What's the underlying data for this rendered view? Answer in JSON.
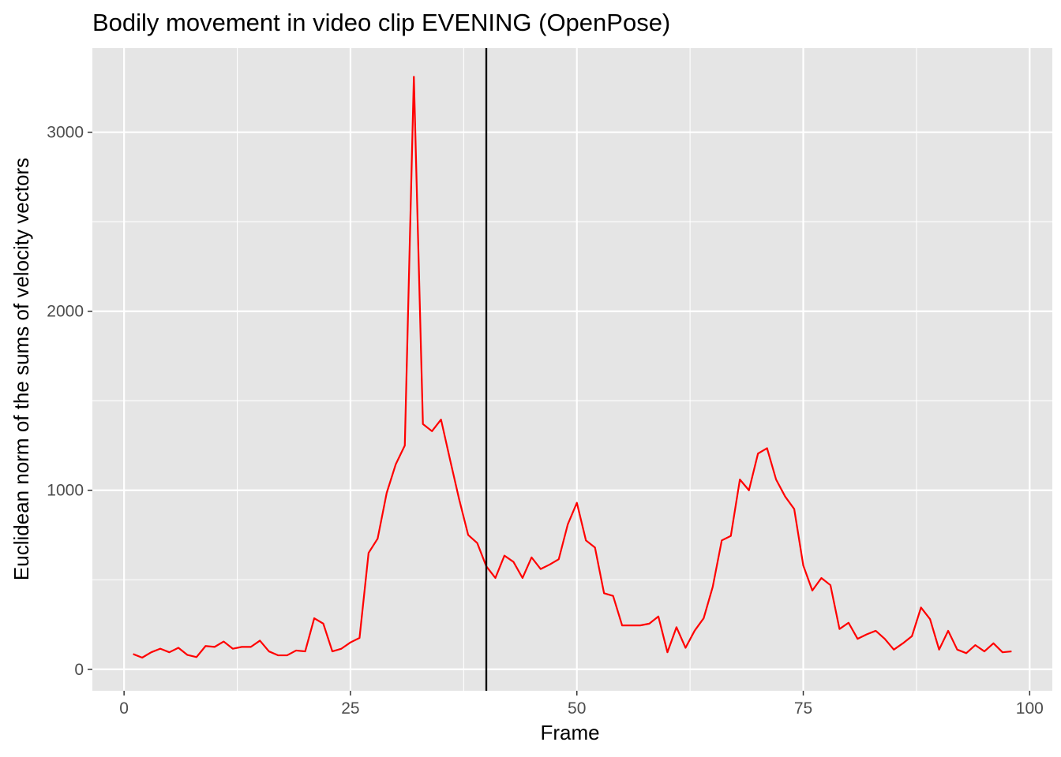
{
  "chart_data": {
    "type": "line",
    "title": "Bodily movement in video clip EVENING (OpenPose)",
    "xlabel": "Frame",
    "ylabel": "Euclidean norm of the sums of velocity vectors",
    "xlim": [
      -3.5,
      102.5
    ],
    "ylim": [
      -120,
      3470
    ],
    "x_ticks": [
      0,
      25,
      50,
      75,
      100
    ],
    "x_tick_labels": [
      "0",
      "25",
      "50",
      "75",
      "100"
    ],
    "y_ticks": [
      0,
      1000,
      2000,
      3000
    ],
    "y_tick_labels": [
      "0",
      "1000",
      "2000",
      "3000"
    ],
    "grid": true,
    "legend": "none",
    "vline": {
      "x": 40,
      "color": "#000000"
    },
    "colors": {
      "panel": "#e5e5e5",
      "grid": "#ffffff",
      "series": "#ff0000",
      "tick_text": "#4d4d4d",
      "tick_mark": "#333333"
    },
    "series": [
      {
        "x": [
          1,
          2,
          3,
          4,
          5,
          6,
          7,
          8,
          9,
          10,
          11,
          12,
          13,
          14,
          15,
          16,
          17,
          18,
          19,
          20,
          21,
          22,
          23,
          24,
          25,
          26,
          27,
          28,
          29,
          30,
          31,
          32,
          33,
          34,
          35,
          36,
          37,
          38,
          39,
          40,
          41,
          42,
          43,
          44,
          45,
          46,
          47,
          48,
          49,
          50,
          51,
          52,
          53,
          54,
          55,
          56,
          57,
          58,
          59,
          60,
          61,
          62,
          63,
          64,
          65,
          66,
          67,
          68,
          69,
          70,
          71,
          72,
          73,
          74,
          75,
          76,
          77,
          78,
          79,
          80,
          81,
          82,
          83,
          84,
          85,
          86,
          87,
          88,
          89,
          90,
          91,
          92,
          93,
          94,
          95,
          96,
          97,
          98
        ],
        "values": [
          85,
          65,
          95,
          115,
          95,
          120,
          80,
          68,
          130,
          125,
          155,
          115,
          125,
          125,
          160,
          100,
          78,
          78,
          105,
          100,
          285,
          255,
          100,
          115,
          150,
          175,
          650,
          730,
          985,
          1145,
          1250,
          3310,
          1370,
          1330,
          1395,
          1170,
          950,
          750,
          705,
          575,
          510,
          635,
          600,
          510,
          625,
          560,
          585,
          615,
          810,
          930,
          720,
          680,
          425,
          410,
          245,
          245,
          245,
          255,
          295,
          95,
          235,
          120,
          215,
          285,
          460,
          720,
          745,
          1060,
          1000,
          1205,
          1235,
          1060,
          965,
          895,
          580,
          440,
          510,
          470,
          225,
          260,
          170,
          195,
          215,
          170,
          110,
          145,
          185,
          345,
          280,
          110,
          215,
          110,
          90,
          135,
          100,
          145,
          95,
          100
        ]
      }
    ]
  }
}
